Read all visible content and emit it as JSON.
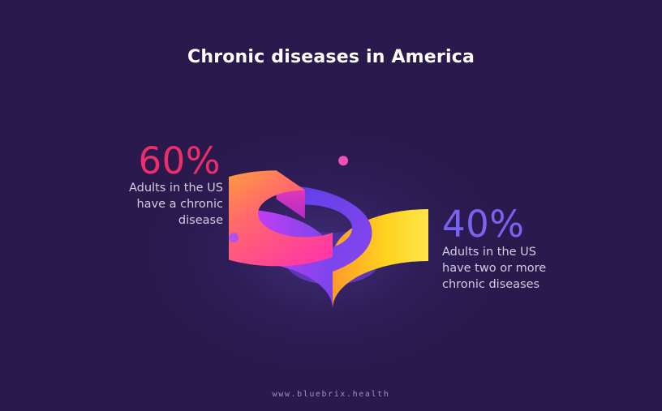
{
  "title": "Chronic diseases in America",
  "footer": "www.bluebrix.health",
  "colors": {
    "background": "#29194c",
    "pct_60": "#ee2d6b",
    "pct_40": "#7a62f2",
    "seg_60_gradient": [
      "#ff2fa6",
      "#ffb02a",
      "#ffe01e"
    ],
    "seg_40_gradient": [
      "#5a3fe6",
      "#c53cf5"
    ]
  },
  "callouts": [
    {
      "percent": "60%",
      "lines": [
        "Adults in the US",
        "have a chronic",
        "disease"
      ]
    },
    {
      "percent": "40%",
      "lines": [
        "Adults in the US",
        "have two or more",
        "chronic diseases"
      ]
    }
  ],
  "chart_data": {
    "type": "pie",
    "style": "3d-donut",
    "title": "Chronic diseases in America",
    "categories": [
      "Adults in the US have a chronic disease",
      "Adults in the US have two or more chronic diseases"
    ],
    "values": [
      60,
      40
    ],
    "labels": [
      "60%",
      "40%"
    ]
  }
}
